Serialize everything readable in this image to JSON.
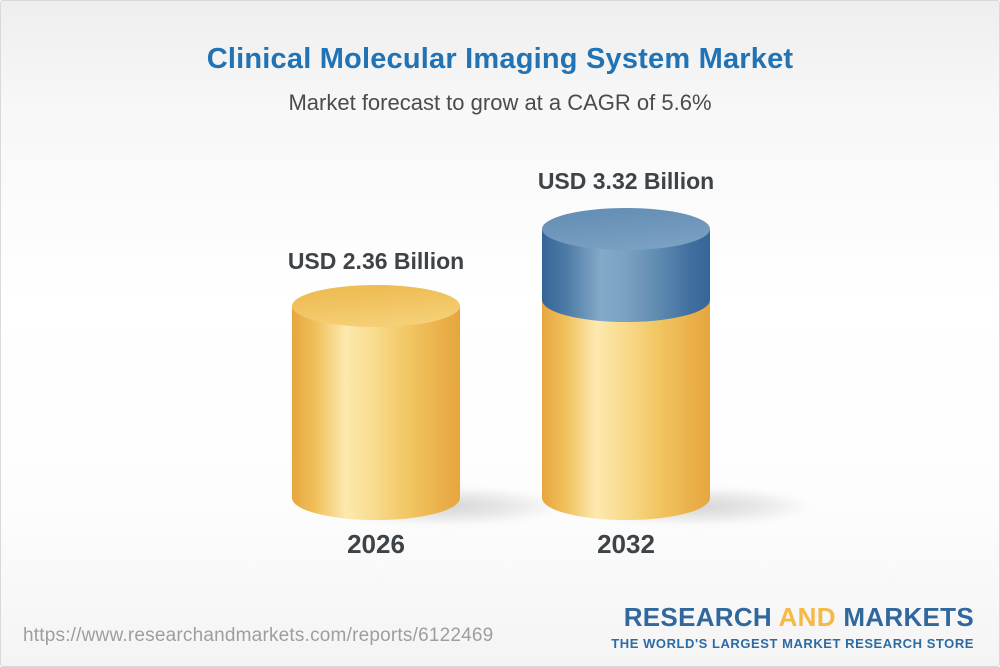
{
  "header": {
    "title": "Clinical Molecular Imaging System Market",
    "subtitle": "Market forecast to grow at a CAGR of 5.6%"
  },
  "chart_data": {
    "type": "bar",
    "variant": "3d-cylinder-infographic",
    "categories": [
      "2026",
      "2032"
    ],
    "values": [
      2.36,
      3.32
    ],
    "value_labels": [
      "USD 2.36 Billion",
      "USD 3.32 Billion"
    ],
    "unit": "USD Billion",
    "cagr_pct": 5.6,
    "series": [
      {
        "name": "base-value",
        "values": [
          2.36,
          2.36
        ],
        "color": "#f2c765"
      },
      {
        "name": "growth-over-base",
        "values": [
          0,
          0.96
        ],
        "color": "#5e8ab0"
      }
    ],
    "axes": "none",
    "grid": "off",
    "legend": "none"
  },
  "footer": {
    "url": "https://www.researchandmarkets.com/reports/6122469",
    "logo": {
      "word1": "RESEARCH",
      "word2": "AND",
      "word3": "MARKETS",
      "tagline": "THE WORLD'S LARGEST MARKET RESEARCH STORE"
    }
  },
  "colors": {
    "title_blue": "#2173b4",
    "subtitle_gray": "#4b4b4b",
    "label_dark": "#3e4347",
    "gold_edge": "#e6a63d",
    "gold_highlight": "#fce9ae",
    "gold_cap": "#f2c566",
    "blue_edge": "#336598",
    "blue_highlight": "#84a9c9",
    "blue_cap": "#6d95ba",
    "url_gray": "#9e9e9e",
    "logo_blue": "#30689e",
    "logo_gold": "#f5b944",
    "background_top": "#eeeeee",
    "background_bottom": "#f4f4f4"
  }
}
